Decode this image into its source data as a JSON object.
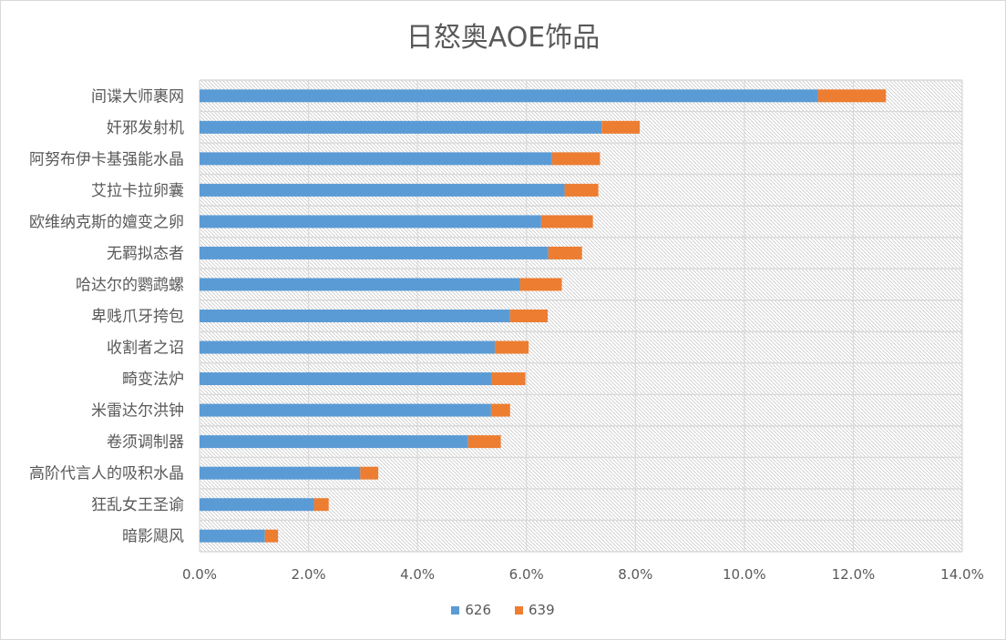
{
  "chart_data": {
    "type": "bar",
    "orientation": "horizontal",
    "stacked": true,
    "title": "日怒奥AOE饰品",
    "categories": [
      "间谍大师裹网",
      "奸邪发射机",
      "阿努布伊卡基强能水晶",
      "艾拉卡拉卵囊",
      "欧维纳克斯的嬗变之卵",
      "无羁拟态者",
      "哈达尔的鹦鹉螺",
      "卑贱爪牙挎包",
      "收割者之诏",
      "畸变法炉",
      "米雷达尔洪钟",
      "卷须调制器",
      "高阶代言人的吸积水晶",
      "狂乱女王圣谕",
      "暗影飓风"
    ],
    "series": [
      {
        "name": "626",
        "color": "#5b9bd5",
        "values": [
          11.35,
          7.38,
          6.47,
          6.7,
          6.27,
          6.4,
          5.88,
          5.7,
          5.42,
          5.36,
          5.35,
          4.93,
          2.95,
          2.1,
          1.2
        ]
      },
      {
        "name": "639",
        "color": "#ed7d31",
        "values": [
          1.25,
          0.7,
          0.88,
          0.62,
          0.95,
          0.62,
          0.77,
          0.69,
          0.62,
          0.62,
          0.35,
          0.6,
          0.33,
          0.27,
          0.24
        ]
      }
    ],
    "xlim": [
      0,
      14
    ],
    "x_ticks": [
      "0.0%",
      "2.0%",
      "4.0%",
      "6.0%",
      "8.0%",
      "10.0%",
      "12.0%",
      "14.0%"
    ],
    "grid": true,
    "legend_position": "bottom"
  }
}
